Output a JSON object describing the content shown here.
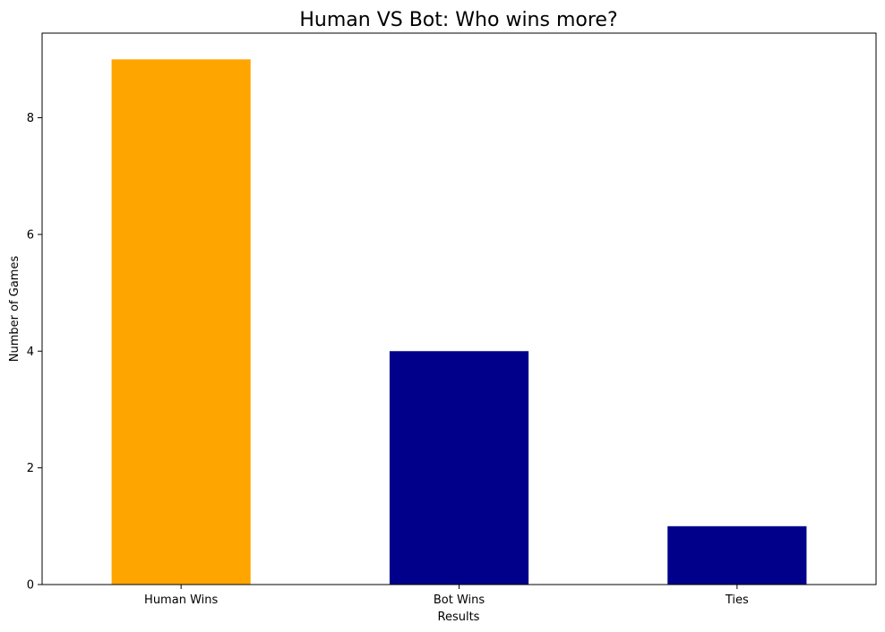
{
  "chart_data": {
    "type": "bar",
    "title": "Human VS Bot: Who wins more?",
    "xlabel": "Results",
    "ylabel": "Number of Games",
    "categories": [
      "Human Wins",
      "Bot Wins",
      "Ties"
    ],
    "values": [
      9,
      4,
      1
    ],
    "bar_colors": [
      "#FFA500",
      "#00008B",
      "#00008B"
    ],
    "ylim": [
      0,
      9.45
    ],
    "yticks": [
      0,
      2,
      4,
      6,
      8
    ],
    "grid": false,
    "legend": "none"
  }
}
